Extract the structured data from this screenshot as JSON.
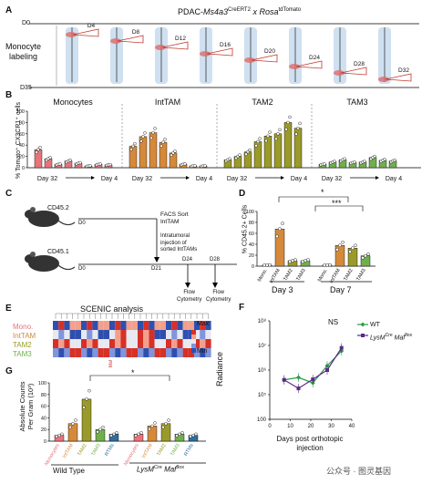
{
  "panelA": {
    "letter": "A",
    "title_prefix": "PDAC-",
    "title_gene1": "Ms4a3",
    "title_sup1": "CreERT2",
    "title_x": " x ",
    "title_gene2": "Rosa",
    "title_sup2": "tdTomato",
    "row_label_line1": "Monocyte",
    "row_label_line2": "labeling",
    "day_labels": [
      "D4",
      "D8",
      "D12",
      "D16",
      "D20",
      "D24",
      "D28",
      "D32"
    ],
    "d0": "D0",
    "d35": "D35"
  },
  "panelB": {
    "letter": "B",
    "ylabel": "% Tomato⁺ CX3CR1⁺ cells",
    "yticks": [
      "0",
      "20",
      "40",
      "60",
      "80",
      "100"
    ],
    "groups": [
      {
        "title": "Monocytes",
        "from": "Day 32",
        "to": "Day 4"
      },
      {
        "title": "IntTAM",
        "from": "Day 32",
        "to": "Day 4"
      },
      {
        "title": "TAM2",
        "from": "Day 32",
        "to": "Day 4"
      },
      {
        "title": "TAM3",
        "from": "Day 32",
        "to": "Day 4"
      }
    ]
  },
  "panelC": {
    "letter": "C",
    "mouse1": "CD45.2",
    "mouse2": "CD45.1",
    "d0a": "D0",
    "d0b": "D0",
    "facs_line1": "FACS Sort",
    "facs_line2": "IntTAM",
    "inj_line1": "Intratumoral",
    "inj_line2": "injection of",
    "inj_line3": "sorted IntTAMs",
    "d21": "D21",
    "d24": "D24",
    "d28": "D28",
    "flow1_line1": "Flow",
    "flow1_line2": "Cytometry",
    "flow2_line1": "Flow",
    "flow2_line2": "Cytometry"
  },
  "panelD": {
    "letter": "D",
    "ylabel": "% CD45.2+ Cells",
    "yticks": [
      "0",
      "20",
      "40",
      "60",
      "80",
      "100"
    ],
    "sig1": "*",
    "sig2": "***",
    "group_labels": [
      "Day 3",
      "Day 7"
    ]
  },
  "panelE": {
    "letter": "E",
    "title": "SCENIC analysis",
    "rows": [
      "Mono.",
      "IntTAM",
      "TAM2",
      "TAM3"
    ],
    "legend_max": "Max",
    "legend_min": "Min",
    "highlight_gene": "Maf"
  },
  "panelF": {
    "letter": "F",
    "ylabel": "Radiance",
    "xlabel_line1": "Days post orthotopic",
    "xlabel_line2": "injection",
    "sig": "NS",
    "yticks": [
      "100",
      "10⁵",
      "10⁶",
      "10⁷",
      "10⁸"
    ],
    "xticks": [
      "0",
      "10",
      "20",
      "30",
      "40"
    ],
    "legend_wt": "WT",
    "legend_ko_gene": "LysM",
    "legend_ko_sup1": "Cre",
    "legend_ko_gene2": " Maf",
    "legend_ko_sup2": "flox"
  },
  "panelG": {
    "letter": "G",
    "ylabel_line1": "Absolute Counts",
    "ylabel_line2": "Per Gram (10³)",
    "yticks": [
      "0",
      "20",
      "40",
      "60",
      "80",
      "100"
    ],
    "sig": "*",
    "group1": "Wild Type",
    "group2_gene": "LysM",
    "group2_sup1": "Cre",
    "group2_gene2": " Maf",
    "group2_sup2": "flox"
  },
  "watermark": "公众号 · 图灵基因",
  "colors": {
    "mono": "#e8737a",
    "inttam": "#d48a3a",
    "tam2": "#9a9a2a",
    "tam3": "#6fb04a",
    "rtm": "#2e6f9e",
    "wt_line": "#2e9a4a",
    "ko_line": "#5a2a8a"
  },
  "chart_data": [
    {
      "panel": "B",
      "type": "bar",
      "ylabel": "% Tomato⁺ CX3CR1⁺ cells",
      "ylim": [
        0,
        100
      ],
      "categories": [
        "D32",
        "D28",
        "D24",
        "D20",
        "D16",
        "D12",
        "D8",
        "D4"
      ],
      "series": [
        {
          "name": "Monocytes",
          "values": [
            32,
            16,
            6,
            12,
            8,
            3,
            6,
            5
          ]
        },
        {
          "name": "IntTAM",
          "values": [
            38,
            55,
            62,
            45,
            26,
            6,
            3,
            3
          ]
        },
        {
          "name": "TAM2",
          "values": [
            14,
            20,
            28,
            46,
            56,
            60,
            80,
            70
          ]
        },
        {
          "name": "TAM3",
          "values": [
            6,
            10,
            14,
            9,
            10,
            18,
            13,
            12
          ]
        }
      ]
    },
    {
      "panel": "D",
      "type": "bar",
      "ylabel": "% CD45.2+ Cells",
      "ylim": [
        0,
        100
      ],
      "categories": [
        "Mono.",
        "IntTAM",
        "TAM2",
        "TAM3",
        "Mono.",
        "IntTAM",
        "TAM2",
        "TAM3"
      ],
      "values": [
        2,
        68,
        10,
        10,
        2,
        38,
        33,
        19
      ]
    },
    {
      "panel": "F",
      "type": "line",
      "ylabel": "Radiance",
      "x": [
        7,
        14,
        21,
        28,
        35
      ],
      "series": [
        {
          "name": "WT",
          "values": [
            400000,
            500000,
            300000,
            1500000,
            6000000
          ]
        },
        {
          "name": "LysM Cre Maf flox",
          "values": [
            400000,
            180000,
            420000,
            1000000,
            8000000
          ]
        }
      ]
    },
    {
      "panel": "G",
      "type": "bar",
      "ylabel": "Absolute Counts Per Gram (10³)",
      "ylim": [
        0,
        100
      ],
      "categories": [
        "Monocytes",
        "IntTAM",
        "TAM2",
        "TAM3",
        "RTMs",
        "Monocytes",
        "IntTAM",
        "TAM2",
        "TAM3",
        "RTMs"
      ],
      "values": [
        10,
        30,
        72,
        20,
        12,
        12,
        26,
        30,
        12,
        10
      ]
    }
  ]
}
